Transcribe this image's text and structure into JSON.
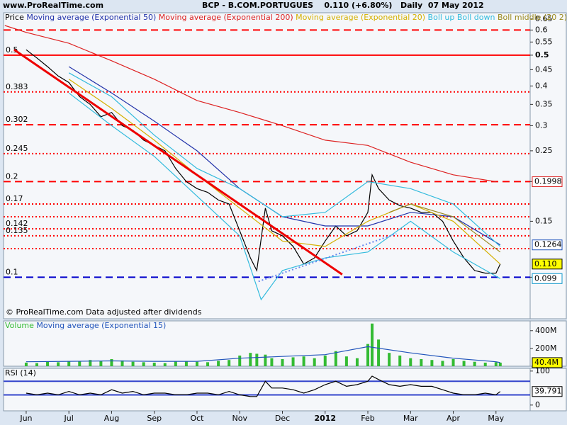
{
  "header": {
    "site": "www.ProRealTime.com",
    "title": "BCP - B.COM.PORTUGUES    0.110 (+6.80%)   Daily  07 May 2012"
  },
  "footer": "© ProRealTime.com  Data adjusted after dividends",
  "chart_data": [
    {
      "type": "line",
      "log_scale": true,
      "xlim": [
        -0.53,
        11.8
      ],
      "xticks": [
        {
          "value": 0,
          "label": "Jun"
        },
        {
          "value": 1,
          "label": "Jul"
        },
        {
          "value": 2,
          "label": "Aug"
        },
        {
          "value": 3,
          "label": "Sep"
        },
        {
          "value": 4,
          "label": "Oct"
        },
        {
          "value": 5,
          "label": "Nov"
        },
        {
          "value": 6,
          "label": "Dec"
        },
        {
          "value": 7,
          "label": "2012",
          "bold": true
        },
        {
          "value": 8,
          "label": "Feb"
        },
        {
          "value": 9,
          "label": "Mar"
        },
        {
          "value": 10,
          "label": "Apr"
        },
        {
          "value": 11,
          "label": "May"
        }
      ],
      "ylim": [
        0.074,
        0.68
      ],
      "yticks": [
        0.65,
        0.6,
        0.55,
        {
          "value": 0.5,
          "label": "0.5",
          "bold": true
        },
        0.45,
        0.4,
        0.35,
        0.3,
        0.25,
        0.2,
        0.15,
        0.1
      ],
      "x": [
        0,
        0.25,
        0.5,
        0.75,
        1,
        1.25,
        1.5,
        1.75,
        2,
        2.25,
        2.5,
        2.75,
        3,
        3.25,
        3.5,
        3.75,
        4,
        4.25,
        4.5,
        4.75,
        5,
        5.25,
        5.4,
        5.6,
        5.75,
        6,
        6.25,
        6.5,
        6.75,
        7,
        7.25,
        7.5,
        7.75,
        8,
        8.1,
        8.25,
        8.5,
        8.75,
        9,
        9.25,
        9.5,
        9.75,
        10,
        10.25,
        10.5,
        10.75,
        11,
        11.1
      ],
      "series": [
        {
          "name": "Price",
          "color": "#000000",
          "values": [
            0.52,
            0.49,
            0.46,
            0.43,
            0.41,
            0.37,
            0.35,
            0.32,
            0.33,
            0.3,
            0.29,
            0.27,
            0.26,
            0.25,
            0.22,
            0.2,
            0.19,
            0.185,
            0.175,
            0.17,
            0.14,
            0.115,
            0.105,
            0.165,
            0.14,
            0.135,
            0.125,
            0.11,
            0.115,
            0.13,
            0.145,
            0.135,
            0.14,
            0.16,
            0.21,
            0.19,
            0.175,
            0.168,
            0.165,
            0.16,
            0.16,
            0.15,
            0.13,
            0.115,
            0.105,
            0.103,
            0.103,
            0.11
          ]
        },
        {
          "name": "Moving average (Exponential 50)",
          "color": "#2233aa",
          "x": [
            1,
            2,
            3,
            4,
            5,
            6,
            7,
            8,
            9,
            10,
            11.1
          ],
          "values": [
            0.46,
            0.38,
            0.31,
            0.25,
            0.19,
            0.155,
            0.145,
            0.145,
            0.16,
            0.155,
            0.1264
          ]
        },
        {
          "name": "Moving average (Exponential 200)",
          "color": "#dd2222",
          "x": [
            -0.5,
            0,
            1,
            2,
            3,
            4,
            5,
            6,
            7,
            8,
            9,
            10,
            11
          ],
          "values": [
            0.62,
            0.59,
            0.545,
            0.48,
            0.42,
            0.36,
            0.33,
            0.3,
            0.27,
            0.26,
            0.23,
            0.21,
            0.1998
          ]
        },
        {
          "name": "Moving average (Exponential 20)",
          "color": "#d4b000",
          "x": [
            1,
            2,
            3,
            4,
            5,
            6,
            7,
            8,
            9,
            10,
            11.1
          ],
          "values": [
            0.42,
            0.34,
            0.27,
            0.21,
            0.165,
            0.13,
            0.125,
            0.15,
            0.17,
            0.15,
            0.11
          ]
        },
        {
          "name": "Boll up",
          "color": "#33bbdd",
          "x": [
            1,
            2,
            3,
            4,
            5,
            6,
            7,
            8,
            9,
            10,
            11.1
          ],
          "values": [
            0.44,
            0.37,
            0.28,
            0.22,
            0.19,
            0.155,
            0.16,
            0.2,
            0.19,
            0.17,
            0.125
          ]
        },
        {
          "name": "Boll down",
          "color": "#33bbdd",
          "x": [
            1,
            2,
            3,
            4,
            5,
            5.5,
            6,
            7,
            8,
            9,
            10,
            11.1
          ],
          "values": [
            0.38,
            0.3,
            0.24,
            0.18,
            0.135,
            0.085,
            0.105,
            0.115,
            0.12,
            0.15,
            0.12,
            0.099
          ]
        },
        {
          "name": "Boll middle (20 2)",
          "color": "#9a8a20",
          "x": [
            8.5,
            9,
            10,
            11.1
          ],
          "values": [
            0.16,
            0.17,
            0.155,
            0.12
          ]
        }
      ],
      "levels": [
        {
          "value": 0.6,
          "style": "dashed",
          "color": "#ff0000"
        },
        {
          "value": 0.5,
          "style": "solid",
          "color": "#ff0000",
          "labeled": true
        },
        {
          "value": 0.383,
          "style": "dotted",
          "color": "#ff0000",
          "labeled": true
        },
        {
          "value": 0.302,
          "style": "dashed",
          "color": "#ff0000",
          "labeled": true
        },
        {
          "value": 0.245,
          "style": "dotted",
          "color": "#ff0000",
          "labeled": true
        },
        {
          "value": 0.2,
          "style": "dashed",
          "color": "#ff0000",
          "labeled": true
        },
        {
          "value": 0.17,
          "style": "dotted",
          "color": "#ff0000",
          "labeled": true
        },
        {
          "value": 0.155,
          "style": "dotted",
          "color": "#ff0000"
        },
        {
          "value": 0.142,
          "style": "dotted",
          "color": "#ff0000",
          "labeled": true
        },
        {
          "value": 0.135,
          "style": "dotted",
          "color": "#ff0000",
          "labeled": true
        },
        {
          "value": 0.123,
          "style": "dotted",
          "color": "#ff0000"
        },
        {
          "value": 0.1,
          "style": "dashed",
          "color": "#0000cc",
          "labeled": true
        }
      ],
      "trendlines": [
        {
          "x": [
            -0.28,
            7.4
          ],
          "values": [
            0.52,
            0.102
          ],
          "color": "#ee0000",
          "style": "solid",
          "width": 3
        },
        {
          "x": [
            5.44,
            8.67
          ],
          "values": [
            0.097,
            0.137
          ],
          "color": "#6688ee",
          "style": "dotted",
          "width": 2
        }
      ],
      "markers": [
        {
          "value": 0.1998,
          "color": "#dd2222"
        },
        {
          "value": 0.1264,
          "color": "#2255bb"
        },
        {
          "value": 0.11,
          "label": "0.110",
          "color": "#000000",
          "background": "#ffff00"
        },
        {
          "value": 0.099,
          "color": "#1199cc"
        }
      ]
    },
    {
      "type": "bar",
      "ylim": [
        0,
        510000000
      ],
      "yticks": [
        {
          "value": 400000000,
          "label": "400M"
        },
        {
          "value": 200000000,
          "label": "200M"
        }
      ],
      "x": [
        0,
        0.25,
        0.5,
        0.75,
        1,
        1.25,
        1.5,
        1.75,
        2,
        2.25,
        2.5,
        2.75,
        3,
        3.25,
        3.5,
        3.75,
        4,
        4.25,
        4.5,
        4.75,
        5,
        5.25,
        5.4,
        5.6,
        5.75,
        6,
        6.25,
        6.5,
        6.75,
        7,
        7.25,
        7.5,
        7.75,
        8,
        8.1,
        8.25,
        8.5,
        8.75,
        9,
        9.25,
        9.5,
        9.75,
        10,
        10.25,
        10.5,
        10.75,
        11,
        11.1
      ],
      "series": [
        {
          "name": "Volume",
          "color": "#33bb33",
          "values": [
            40000000,
            35000000,
            50000000,
            45000000,
            60000000,
            55000000,
            70000000,
            60000000,
            80000000,
            65000000,
            50000000,
            45000000,
            40000000,
            35000000,
            55000000,
            60000000,
            50000000,
            45000000,
            60000000,
            70000000,
            120000000,
            150000000,
            140000000,
            130000000,
            90000000,
            80000000,
            100000000,
            110000000,
            90000000,
            120000000,
            170000000,
            110000000,
            90000000,
            250000000,
            480000000,
            300000000,
            150000000,
            120000000,
            90000000,
            80000000,
            70000000,
            60000000,
            80000000,
            60000000,
            50000000,
            40000000,
            45000000,
            40000000
          ]
        },
        {
          "name": "Moving average (Exponential 15)",
          "color": "#2255bb",
          "type": "line",
          "x": [
            0,
            1,
            2,
            3,
            4,
            5,
            6,
            7,
            8,
            9,
            10,
            11,
            11.1
          ],
          "values": [
            50000000,
            55000000,
            60000000,
            55000000,
            55000000,
            90000000,
            110000000,
            130000000,
            220000000,
            150000000,
            90000000,
            50000000,
            40400000
          ]
        }
      ],
      "markers": [
        {
          "value": 40400000,
          "label": "40.4M",
          "color": "#000000",
          "background": "#ffff00"
        }
      ]
    },
    {
      "type": "line",
      "ylim": [
        -17,
        108
      ],
      "yticks": [
        100,
        0
      ],
      "x": [
        0,
        0.25,
        0.5,
        0.75,
        1,
        1.25,
        1.5,
        1.75,
        2,
        2.25,
        2.5,
        2.75,
        3,
        3.25,
        3.5,
        3.75,
        4,
        4.25,
        4.5,
        4.75,
        5,
        5.25,
        5.4,
        5.6,
        5.75,
        6,
        6.25,
        6.5,
        6.75,
        7,
        7.25,
        7.5,
        7.75,
        8,
        8.1,
        8.25,
        8.5,
        8.75,
        9,
        9.25,
        9.5,
        9.75,
        10,
        10.25,
        10.5,
        10.75,
        11,
        11.1
      ],
      "series": [
        {
          "name": "RSI (14)",
          "color": "#000000",
          "values": [
            35,
            30,
            35,
            30,
            40,
            30,
            35,
            30,
            45,
            35,
            40,
            30,
            35,
            35,
            30,
            30,
            35,
            35,
            30,
            40,
            30,
            25,
            25,
            70,
            50,
            50,
            45,
            35,
            45,
            60,
            70,
            55,
            60,
            70,
            85,
            75,
            60,
            55,
            60,
            55,
            55,
            45,
            35,
            30,
            30,
            35,
            30,
            39.791
          ]
        }
      ],
      "levels": [
        {
          "value": 70,
          "style": "solid",
          "color": "#3344cc"
        },
        {
          "value": 30,
          "style": "solid",
          "color": "#3344cc"
        }
      ],
      "markers": [
        {
          "value": 39.791,
          "color": "#000000"
        }
      ]
    }
  ]
}
